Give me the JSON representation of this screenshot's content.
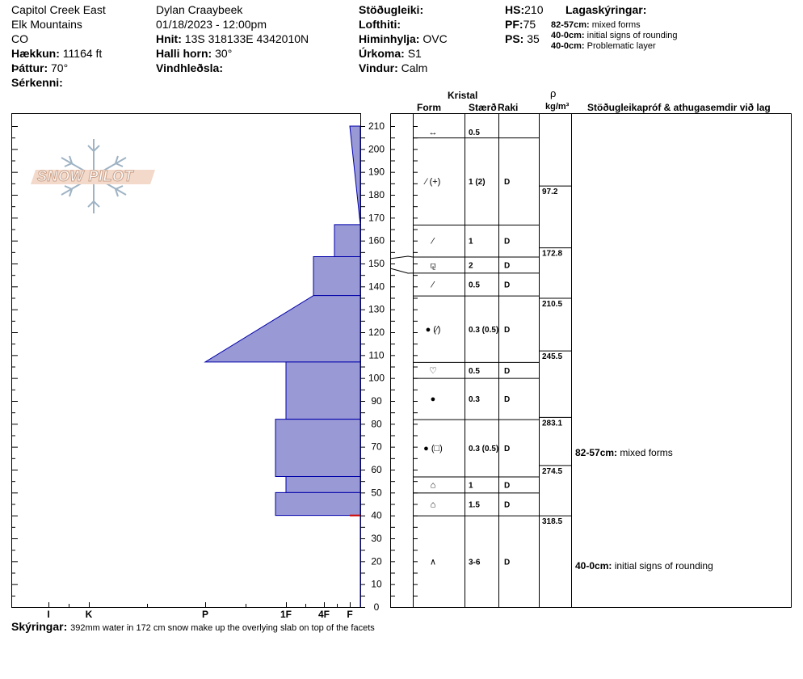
{
  "header": {
    "location": "Capitol Creek East",
    "range": "Elk Mountains",
    "state": "CO",
    "elevation_label": "Hækkun:",
    "elevation_value": "11164 ft",
    "aspect_label": "Þáttur:",
    "aspect_value": "70°",
    "features_label": "Sérkenni:",
    "observer": "Dylan Craaybeek",
    "datetime": "01/18/2023 - 12:00pm",
    "coords_label": "Hnit:",
    "coords_value": "13S 318133E 4342010N",
    "slope_label": "Halli horn:",
    "slope_value": "30°",
    "wind_loading_label": "Vindhleðsla:",
    "stability_label": "Stöðugleiki:",
    "air_temp_label": "Lofthiti:",
    "sky_label": "Himinhylja:",
    "sky_value": "OVC",
    "precip_label": "Úrkoma:",
    "precip_value": "S1",
    "wind_label": "Vindur:",
    "wind_value": "Calm",
    "hs_label": "HS:",
    "hs_value": "210",
    "pf_label": "PF:",
    "pf_value": "75",
    "ps_label": "PS:",
    "ps_value": "35",
    "legend_title": "Lagaskýringar:",
    "legend": [
      {
        "range": "82-57cm:",
        "text": "mixed forms"
      },
      {
        "range": "40-0cm:",
        "text": "initial signs of rounding"
      },
      {
        "range": "40-0cm:",
        "text": "Problematic layer"
      }
    ]
  },
  "logo": {
    "text": "SNOW PILOT"
  },
  "columns": {
    "crystal": "Kristal",
    "form": "Form",
    "size": "Stærð",
    "moisture": "Raki",
    "rho": "ρ",
    "density_unit": "kg/m³",
    "tests": "Stöðugleikapróf & athugasemdir við lag"
  },
  "notes_label": "Skýringar:",
  "notes_text": "392mm water in 172 cm snow make up the overlying slab on top of the facets",
  "comments": [
    {
      "range": "82-57cm:",
      "text": "mixed forms",
      "depth": 69.5
    },
    {
      "range": "40-0cm:",
      "text": "initial signs of rounding",
      "depth": 20
    }
  ],
  "colors": {
    "hardness_fill": "#9999d6",
    "hardness_stroke": "#0000aa",
    "problem_line": "#cc0000"
  },
  "chart_data": {
    "type": "snow_profile",
    "y_axis": {
      "label": "",
      "unit": "cm",
      "range": [
        0,
        210
      ],
      "ticks": [
        0,
        10,
        20,
        30,
        40,
        50,
        60,
        70,
        80,
        90,
        100,
        110,
        120,
        130,
        140,
        150,
        160,
        170,
        180,
        190,
        200,
        210
      ]
    },
    "hardness_axis": {
      "labels": [
        "I",
        "K",
        "P",
        "1F",
        "4F",
        "F"
      ]
    },
    "hardness_profile": [
      {
        "top": 210,
        "bottom": 167,
        "hardness_top": "F",
        "hardness_bottom": "F+"
      },
      {
        "top": 167,
        "bottom": 153,
        "hardness": "4F+"
      },
      {
        "top": 153,
        "bottom": 136,
        "hardness": "4F-"
      },
      {
        "top": 136,
        "bottom": 107,
        "hardness_top": "4F-",
        "hardness_bottom": "P"
      },
      {
        "top": 107,
        "bottom": 82,
        "hardness": "1F"
      },
      {
        "top": 82,
        "bottom": 57,
        "hardness": "1F-"
      },
      {
        "top": 57,
        "bottom": 50,
        "hardness": "1F"
      },
      {
        "top": 50,
        "bottom": 40,
        "hardness": "1F-"
      },
      {
        "top": 40,
        "bottom": 0,
        "hardness": "F+"
      }
    ],
    "layers": [
      {
        "top": 210,
        "bottom": 205,
        "form": "↔",
        "size": "0.5",
        "moisture": ""
      },
      {
        "top": 205,
        "bottom": 167,
        "form": "⁄ (+)",
        "size": "1 (2)",
        "moisture": "D"
      },
      {
        "top": 167,
        "bottom": 153,
        "form": "⁄",
        "size": "1",
        "moisture": "D"
      },
      {
        "top": 153,
        "bottom": 146,
        "form": "⚼",
        "size": "2",
        "moisture": "D"
      },
      {
        "top": 146,
        "bottom": 136,
        "form": "⁄",
        "size": "0.5",
        "moisture": "D"
      },
      {
        "top": 136,
        "bottom": 107,
        "form": "● (⁄)",
        "size": "0.3 (0.5)",
        "moisture": "D"
      },
      {
        "top": 107,
        "bottom": 100,
        "form": "♡",
        "size": "0.5",
        "moisture": "D"
      },
      {
        "top": 100,
        "bottom": 82,
        "form": "●",
        "size": "0.3",
        "moisture": "D"
      },
      {
        "top": 82,
        "bottom": 57,
        "form": "● (□)",
        "size": "0.3 (0.5)",
        "moisture": "D"
      },
      {
        "top": 57,
        "bottom": 50,
        "form": "⌂",
        "size": "1",
        "moisture": "D"
      },
      {
        "top": 50,
        "bottom": 40,
        "form": "⌂",
        "size": "1.5",
        "moisture": "D"
      },
      {
        "top": 40,
        "bottom": 0,
        "form": "∧",
        "size": "3-6",
        "moisture": "D"
      }
    ],
    "density": [
      {
        "top": 184,
        "value": "97.2"
      },
      {
        "top": 157,
        "value": "172.8"
      },
      {
        "top": 135,
        "value": "210.5"
      },
      {
        "top": 112,
        "value": "245.5"
      },
      {
        "top": 83,
        "value": "283.1"
      },
      {
        "top": 62,
        "value": "274.5"
      },
      {
        "top": 40,
        "value": "318.5"
      }
    ],
    "problem_layer": 40
  }
}
